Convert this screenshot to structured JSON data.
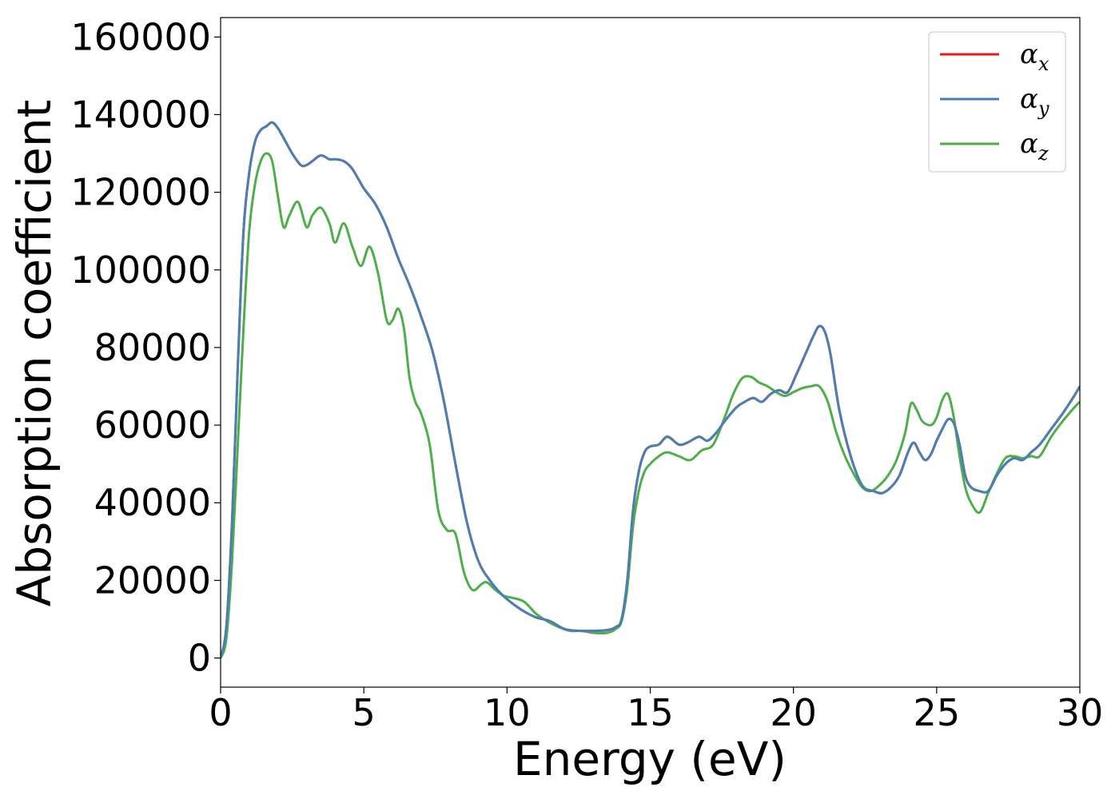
{
  "chart_data": {
    "type": "line",
    "xlabel": "Energy (eV)",
    "ylabel": "Absorption coefficient",
    "xlim": [
      0,
      30
    ],
    "ylim": [
      -7500,
      165000
    ],
    "x_ticks": [
      0,
      5,
      10,
      15,
      20,
      25,
      30
    ],
    "y_ticks": [
      0,
      20000,
      40000,
      60000,
      80000,
      100000,
      120000,
      140000,
      160000
    ],
    "grid": false,
    "legend_position": "upper-right",
    "series": [
      {
        "name": "α_x",
        "legend_symbol": "α",
        "legend_subscript": "x",
        "color": "#e41a1c",
        "x": [
          0,
          0.2,
          0.4,
          0.6,
          0.8,
          1.0,
          1.2,
          1.4,
          1.6,
          1.8,
          2.0,
          2.2,
          2.5,
          2.8,
          3.0,
          3.2,
          3.5,
          3.8,
          4.0,
          4.3,
          4.6,
          5.0,
          5.4,
          5.8,
          6.2,
          6.6,
          7.0,
          7.4,
          7.8,
          8.2,
          8.6,
          9.0,
          9.4,
          9.8,
          10.2,
          10.6,
          11.0,
          11.5,
          12.0,
          12.5,
          13.0,
          13.5,
          13.8,
          14.0,
          14.2,
          14.4,
          14.6,
          14.8,
          15.0,
          15.3,
          15.6,
          16.0,
          16.3,
          16.7,
          17.0,
          17.3,
          17.6,
          18.0,
          18.3,
          18.6,
          18.9,
          19.2,
          19.5,
          19.8,
          20.1,
          20.4,
          20.7,
          20.9,
          21.1,
          21.3,
          21.6,
          22.0,
          22.4,
          22.8,
          23.1,
          23.4,
          23.7,
          24.0,
          24.2,
          24.4,
          24.6,
          24.8,
          25.0,
          25.2,
          25.4,
          25.6,
          25.8,
          26.0,
          26.2,
          26.5,
          26.8,
          27.1,
          27.4,
          27.7,
          28.0,
          28.3,
          28.6,
          29.0,
          29.4,
          29.8,
          30.0
        ],
        "values": [
          0,
          8000,
          35000,
          75000,
          110000,
          125000,
          133000,
          136000,
          137000,
          138000,
          136500,
          134000,
          130000,
          127000,
          127000,
          128000,
          129500,
          128500,
          128500,
          128000,
          126000,
          121000,
          117000,
          111000,
          103000,
          96000,
          88000,
          79000,
          66000,
          50000,
          35000,
          25000,
          20000,
          16500,
          14000,
          12000,
          10500,
          9500,
          7500,
          7000,
          7000,
          7200,
          8000,
          10000,
          20000,
          38000,
          48000,
          53000,
          54500,
          55000,
          57000,
          55000,
          55500,
          57000,
          56000,
          58000,
          61000,
          64500,
          66000,
          67000,
          66000,
          68000,
          69000,
          68500,
          73000,
          78000,
          83000,
          85500,
          84000,
          78000,
          64000,
          52000,
          44500,
          43000,
          42500,
          44000,
          47000,
          53000,
          55500,
          53000,
          51000,
          52500,
          56000,
          59000,
          61500,
          60500,
          55000,
          47000,
          44000,
          43000,
          43000,
          47000,
          50000,
          51500,
          51000,
          53000,
          55000,
          59000,
          63000,
          67500,
          70000
        ]
      },
      {
        "name": "α_y",
        "legend_symbol": "α",
        "legend_subscript": "y",
        "color": "#4a7fb5",
        "x": [
          0,
          0.2,
          0.4,
          0.6,
          0.8,
          1.0,
          1.2,
          1.4,
          1.6,
          1.8,
          2.0,
          2.2,
          2.5,
          2.8,
          3.0,
          3.2,
          3.5,
          3.8,
          4.0,
          4.3,
          4.6,
          5.0,
          5.4,
          5.8,
          6.2,
          6.6,
          7.0,
          7.4,
          7.8,
          8.2,
          8.6,
          9.0,
          9.4,
          9.8,
          10.2,
          10.6,
          11.0,
          11.5,
          12.0,
          12.5,
          13.0,
          13.5,
          13.8,
          14.0,
          14.2,
          14.4,
          14.6,
          14.8,
          15.0,
          15.3,
          15.6,
          16.0,
          16.3,
          16.7,
          17.0,
          17.3,
          17.6,
          18.0,
          18.3,
          18.6,
          18.9,
          19.2,
          19.5,
          19.8,
          20.1,
          20.4,
          20.7,
          20.9,
          21.1,
          21.3,
          21.6,
          22.0,
          22.4,
          22.8,
          23.1,
          23.4,
          23.7,
          24.0,
          24.2,
          24.4,
          24.6,
          24.8,
          25.0,
          25.2,
          25.4,
          25.6,
          25.8,
          26.0,
          26.2,
          26.5,
          26.8,
          27.1,
          27.4,
          27.7,
          28.0,
          28.3,
          28.6,
          29.0,
          29.4,
          29.8,
          30.0
        ],
        "values": [
          0,
          8000,
          35000,
          75000,
          110000,
          125000,
          133000,
          136000,
          137000,
          138000,
          136500,
          134000,
          130000,
          127000,
          127000,
          128000,
          129500,
          128500,
          128500,
          128000,
          126000,
          121000,
          117000,
          111000,
          103000,
          96000,
          88000,
          79000,
          66000,
          50000,
          35000,
          25000,
          20000,
          16500,
          14000,
          12000,
          10500,
          9500,
          7500,
          7000,
          7000,
          7200,
          8000,
          10000,
          20000,
          38000,
          48000,
          53000,
          54500,
          55000,
          57000,
          55000,
          55500,
          57000,
          56000,
          58000,
          61000,
          64500,
          66000,
          67000,
          66000,
          68000,
          69000,
          68500,
          73000,
          78000,
          83000,
          85500,
          84000,
          78000,
          64000,
          52000,
          44500,
          43000,
          42500,
          44000,
          47000,
          53000,
          55500,
          53000,
          51000,
          52500,
          56000,
          59000,
          61500,
          60500,
          55000,
          47000,
          44000,
          43000,
          43000,
          47000,
          50000,
          51500,
          51000,
          53000,
          55000,
          59000,
          63000,
          67500,
          70000
        ]
      },
      {
        "name": "α_z",
        "legend_symbol": "α",
        "legend_subscript": "z",
        "color": "#4daf4a",
        "x": [
          0,
          0.2,
          0.4,
          0.6,
          0.8,
          1.0,
          1.2,
          1.4,
          1.6,
          1.8,
          2.0,
          2.2,
          2.4,
          2.7,
          3.0,
          3.2,
          3.5,
          3.8,
          4.0,
          4.3,
          4.6,
          4.9,
          5.2,
          5.5,
          5.8,
          6.0,
          6.2,
          6.4,
          6.6,
          6.8,
          7.0,
          7.3,
          7.6,
          7.9,
          8.2,
          8.5,
          8.8,
          9.1,
          9.3,
          9.6,
          9.9,
          10.2,
          10.6,
          11.0,
          11.4,
          11.8,
          12.2,
          12.6,
          13.0,
          13.5,
          13.8,
          14.0,
          14.2,
          14.4,
          14.6,
          14.8,
          15.0,
          15.3,
          15.6,
          16.0,
          16.4,
          16.8,
          17.2,
          17.6,
          17.9,
          18.2,
          18.5,
          18.8,
          19.1,
          19.4,
          19.7,
          20.0,
          20.3,
          20.6,
          20.9,
          21.2,
          21.5,
          21.8,
          22.1,
          22.4,
          22.7,
          23.0,
          23.3,
          23.6,
          23.9,
          24.1,
          24.3,
          24.5,
          24.8,
          25.0,
          25.2,
          25.4,
          25.6,
          25.8,
          26.0,
          26.2,
          26.5,
          26.8,
          27.1,
          27.4,
          27.7,
          28.0,
          28.3,
          28.6,
          29.0,
          29.4,
          29.8,
          30.0
        ],
        "values": [
          0,
          5000,
          25000,
          55000,
          85000,
          110000,
          122000,
          128000,
          130000,
          128000,
          119000,
          111000,
          114000,
          117500,
          111000,
          114000,
          116000,
          112000,
          107000,
          112000,
          106000,
          101000,
          106000,
          99000,
          87000,
          87000,
          90000,
          85000,
          72000,
          66000,
          63000,
          55000,
          38000,
          33000,
          32000,
          22000,
          17500,
          19000,
          19500,
          17500,
          16000,
          15500,
          14500,
          11500,
          9500,
          8000,
          7000,
          7000,
          6500,
          6500,
          7500,
          9500,
          18000,
          34000,
          43000,
          48000,
          50000,
          52000,
          53000,
          52000,
          51000,
          53500,
          55000,
          62000,
          68000,
          72000,
          72500,
          71000,
          70000,
          68500,
          67500,
          68500,
          69500,
          70000,
          70000,
          66000,
          58000,
          52000,
          47500,
          44000,
          43000,
          44500,
          47000,
          51000,
          58000,
          65500,
          64000,
          61000,
          60000,
          62000,
          66500,
          68000,
          62000,
          52000,
          44000,
          40000,
          37500,
          42500,
          47500,
          51500,
          52000,
          51500,
          52000,
          52000,
          57000,
          61000,
          64500,
          66000
        ]
      }
    ]
  }
}
